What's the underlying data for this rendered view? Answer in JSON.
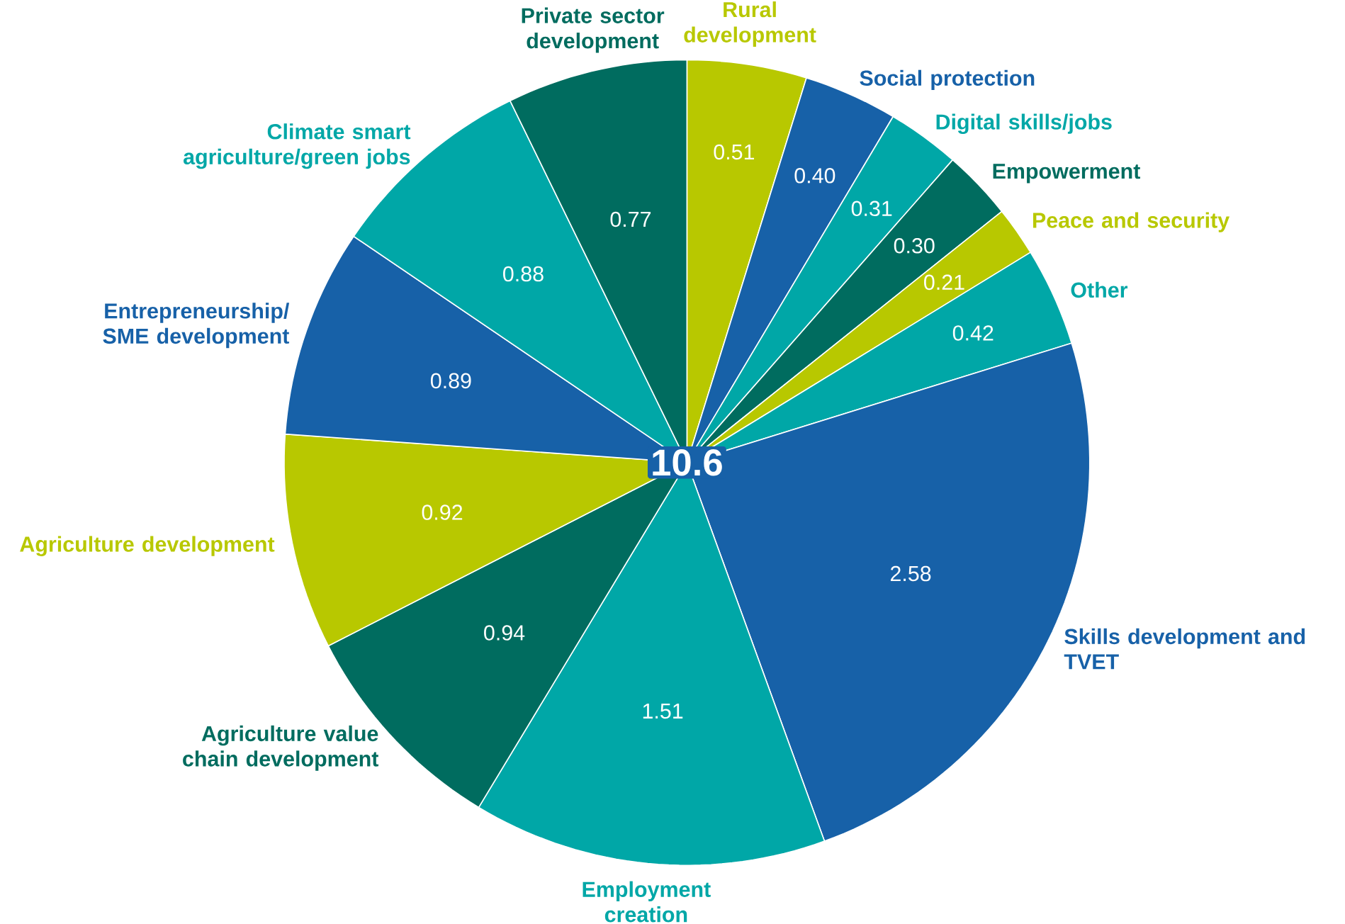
{
  "chart_data": {
    "type": "pie",
    "categories": [
      "Rural development",
      "Social protection",
      "Digital skills/jobs",
      "Empowerment",
      "Peace and security",
      "Other",
      "Skills development and TVET",
      "Employment creation",
      "Agriculture value chain development",
      "Agriculture development",
      "Entrepreneurship/ SME development",
      "Climate smart agriculture/green jobs",
      "Private sector development"
    ],
    "values": [
      0.51,
      0.4,
      0.31,
      0.3,
      0.21,
      0.42,
      2.58,
      1.51,
      0.94,
      0.92,
      0.89,
      0.88,
      0.77
    ],
    "value_labels": [
      "0.51",
      "0.40",
      "0.31",
      "0.30",
      "0.21",
      "0.42",
      "2.58",
      "1.51",
      "0.94",
      "0.92",
      "0.89",
      "0.88",
      "0.77"
    ],
    "colors": [
      "#b8c800",
      "#1761a8",
      "#00a7a7",
      "#006c5f",
      "#b8c800",
      "#00a7a7",
      "#1761a8",
      "#00a7a7",
      "#006c5f",
      "#b8c800",
      "#1761a8",
      "#00a7a7",
      "#006c5f"
    ],
    "annotations": [
      "10.6"
    ]
  }
}
